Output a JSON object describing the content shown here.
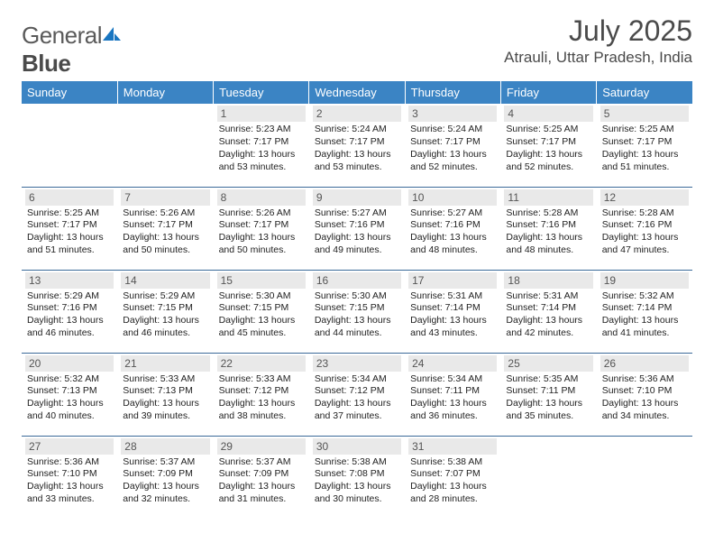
{
  "brand": {
    "part1": "General",
    "part2": "Blue"
  },
  "title": "July 2025",
  "location": "Atrauli, Uttar Pradesh, India",
  "colors": {
    "header_bg": "#3b84c4",
    "header_text": "#ffffff",
    "daynum_bg": "#e9e9e9",
    "border": "#3b6a99",
    "logo_mark": "#1976c1"
  },
  "day_labels": [
    "Sunday",
    "Monday",
    "Tuesday",
    "Wednesday",
    "Thursday",
    "Friday",
    "Saturday"
  ],
  "grid": [
    [
      null,
      null,
      {
        "n": "1",
        "sr": "5:23 AM",
        "ss": "7:17 PM",
        "dl": "13 hours and 53 minutes."
      },
      {
        "n": "2",
        "sr": "5:24 AM",
        "ss": "7:17 PM",
        "dl": "13 hours and 53 minutes."
      },
      {
        "n": "3",
        "sr": "5:24 AM",
        "ss": "7:17 PM",
        "dl": "13 hours and 52 minutes."
      },
      {
        "n": "4",
        "sr": "5:25 AM",
        "ss": "7:17 PM",
        "dl": "13 hours and 52 minutes."
      },
      {
        "n": "5",
        "sr": "5:25 AM",
        "ss": "7:17 PM",
        "dl": "13 hours and 51 minutes."
      }
    ],
    [
      {
        "n": "6",
        "sr": "5:25 AM",
        "ss": "7:17 PM",
        "dl": "13 hours and 51 minutes."
      },
      {
        "n": "7",
        "sr": "5:26 AM",
        "ss": "7:17 PM",
        "dl": "13 hours and 50 minutes."
      },
      {
        "n": "8",
        "sr": "5:26 AM",
        "ss": "7:17 PM",
        "dl": "13 hours and 50 minutes."
      },
      {
        "n": "9",
        "sr": "5:27 AM",
        "ss": "7:16 PM",
        "dl": "13 hours and 49 minutes."
      },
      {
        "n": "10",
        "sr": "5:27 AM",
        "ss": "7:16 PM",
        "dl": "13 hours and 48 minutes."
      },
      {
        "n": "11",
        "sr": "5:28 AM",
        "ss": "7:16 PM",
        "dl": "13 hours and 48 minutes."
      },
      {
        "n": "12",
        "sr": "5:28 AM",
        "ss": "7:16 PM",
        "dl": "13 hours and 47 minutes."
      }
    ],
    [
      {
        "n": "13",
        "sr": "5:29 AM",
        "ss": "7:16 PM",
        "dl": "13 hours and 46 minutes."
      },
      {
        "n": "14",
        "sr": "5:29 AM",
        "ss": "7:15 PM",
        "dl": "13 hours and 46 minutes."
      },
      {
        "n": "15",
        "sr": "5:30 AM",
        "ss": "7:15 PM",
        "dl": "13 hours and 45 minutes."
      },
      {
        "n": "16",
        "sr": "5:30 AM",
        "ss": "7:15 PM",
        "dl": "13 hours and 44 minutes."
      },
      {
        "n": "17",
        "sr": "5:31 AM",
        "ss": "7:14 PM",
        "dl": "13 hours and 43 minutes."
      },
      {
        "n": "18",
        "sr": "5:31 AM",
        "ss": "7:14 PM",
        "dl": "13 hours and 42 minutes."
      },
      {
        "n": "19",
        "sr": "5:32 AM",
        "ss": "7:14 PM",
        "dl": "13 hours and 41 minutes."
      }
    ],
    [
      {
        "n": "20",
        "sr": "5:32 AM",
        "ss": "7:13 PM",
        "dl": "13 hours and 40 minutes."
      },
      {
        "n": "21",
        "sr": "5:33 AM",
        "ss": "7:13 PM",
        "dl": "13 hours and 39 minutes."
      },
      {
        "n": "22",
        "sr": "5:33 AM",
        "ss": "7:12 PM",
        "dl": "13 hours and 38 minutes."
      },
      {
        "n": "23",
        "sr": "5:34 AM",
        "ss": "7:12 PM",
        "dl": "13 hours and 37 minutes."
      },
      {
        "n": "24",
        "sr": "5:34 AM",
        "ss": "7:11 PM",
        "dl": "13 hours and 36 minutes."
      },
      {
        "n": "25",
        "sr": "5:35 AM",
        "ss": "7:11 PM",
        "dl": "13 hours and 35 minutes."
      },
      {
        "n": "26",
        "sr": "5:36 AM",
        "ss": "7:10 PM",
        "dl": "13 hours and 34 minutes."
      }
    ],
    [
      {
        "n": "27",
        "sr": "5:36 AM",
        "ss": "7:10 PM",
        "dl": "13 hours and 33 minutes."
      },
      {
        "n": "28",
        "sr": "5:37 AM",
        "ss": "7:09 PM",
        "dl": "13 hours and 32 minutes."
      },
      {
        "n": "29",
        "sr": "5:37 AM",
        "ss": "7:09 PM",
        "dl": "13 hours and 31 minutes."
      },
      {
        "n": "30",
        "sr": "5:38 AM",
        "ss": "7:08 PM",
        "dl": "13 hours and 30 minutes."
      },
      {
        "n": "31",
        "sr": "5:38 AM",
        "ss": "7:07 PM",
        "dl": "13 hours and 28 minutes."
      },
      null,
      null
    ]
  ],
  "labels": {
    "sunrise": "Sunrise:",
    "sunset": "Sunset:",
    "daylight": "Daylight:"
  }
}
